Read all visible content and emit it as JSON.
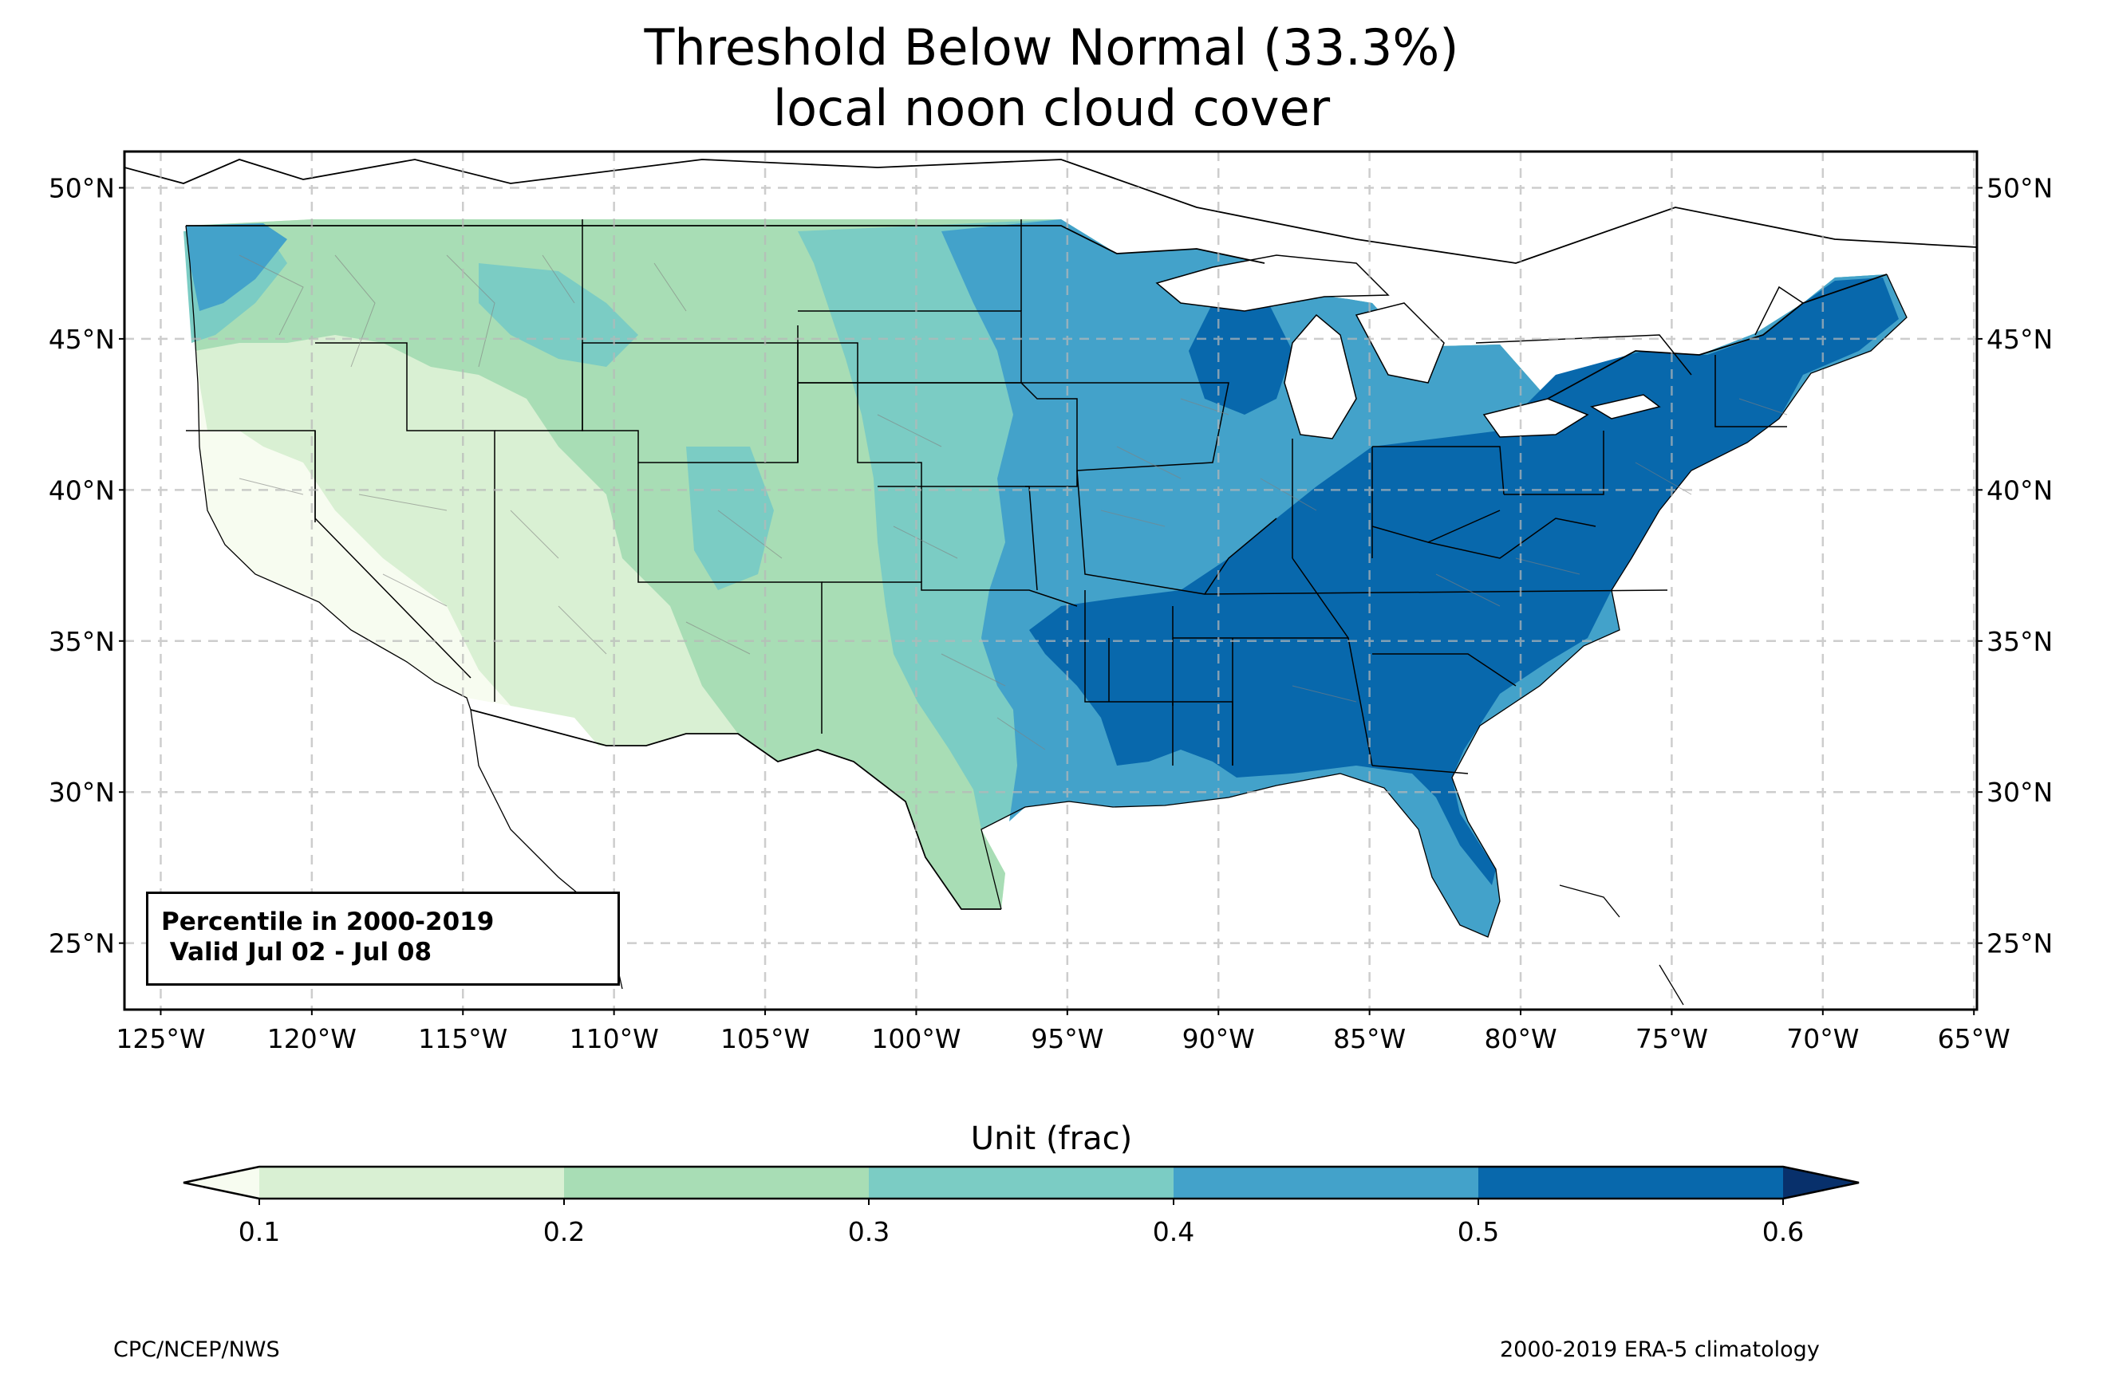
{
  "title": {
    "line1": "Threshold Below Normal (33.3%)",
    "line2": "local noon cloud cover"
  },
  "map": {
    "lat_labels": [
      "50°N",
      "45°N",
      "40°N",
      "35°N",
      "30°N",
      "25°N"
    ],
    "lat_values": [
      50,
      45,
      40,
      35,
      30,
      25
    ],
    "lon_labels": [
      "125°W",
      "120°W",
      "115°W",
      "110°W",
      "105°W",
      "100°W",
      "95°W",
      "90°W",
      "85°W",
      "80°W",
      "75°W",
      "70°W",
      "65°W"
    ],
    "lon_values": [
      -125,
      -120,
      -115,
      -110,
      -105,
      -100,
      -95,
      -90,
      -85,
      -80,
      -75,
      -70,
      -65
    ],
    "extent": {
      "lon": [
        -126.2,
        -64.9
      ],
      "lat": [
        22.8,
        51.2
      ]
    },
    "gridlines": true
  },
  "infobox": {
    "line1": "Percentile in 2000-2019",
    "line2": " Valid Jul 02 - Jul 08"
  },
  "colorbar": {
    "label": "Unit (frac)",
    "ticks": [
      "0.1",
      "0.2",
      "0.3",
      "0.4",
      "0.5",
      "0.6"
    ],
    "levels": [
      0.1,
      0.2,
      0.3,
      0.4,
      0.5,
      0.6
    ],
    "colors": [
      "#f7fcf0",
      "#d9f0d3",
      "#a8ddb5",
      "#7bccc4",
      "#43a2ca",
      "#0868ac",
      "#08306b"
    ]
  },
  "footer": {
    "left": "CPC/NCEP/NWS",
    "right": "2000-2019 ERA-5 climatology"
  }
}
